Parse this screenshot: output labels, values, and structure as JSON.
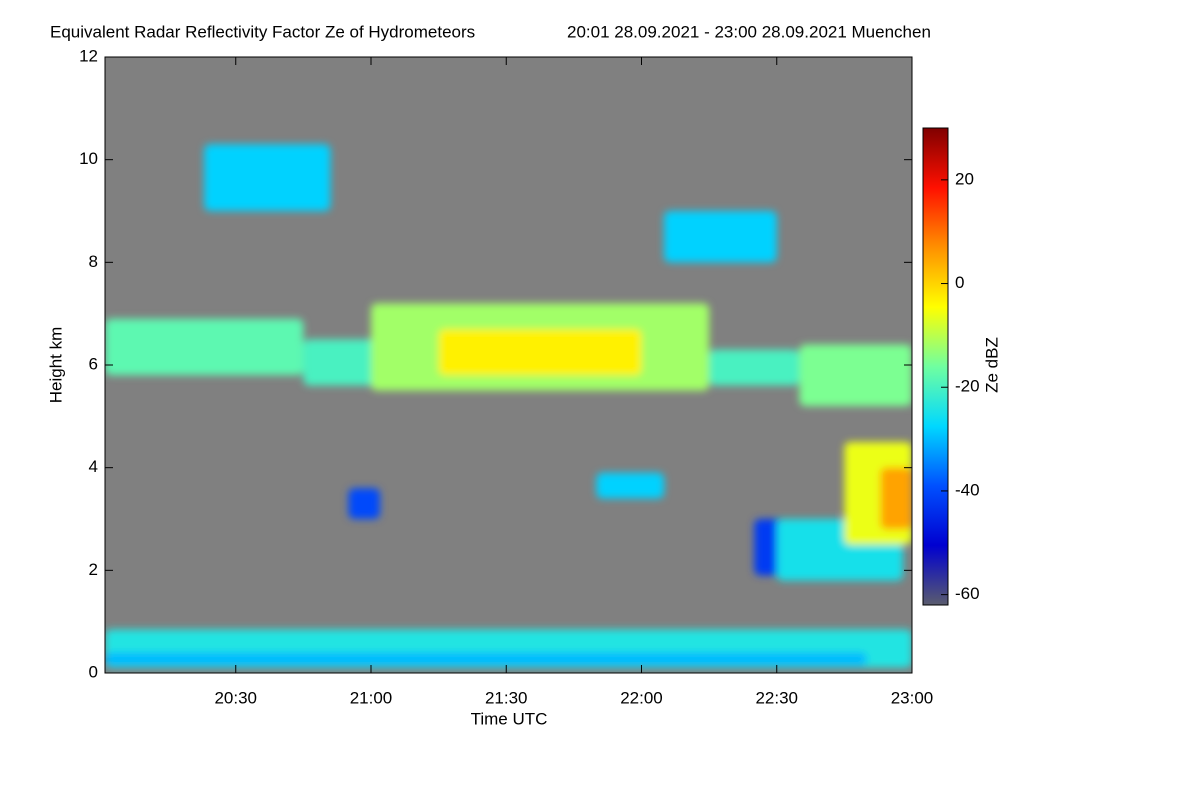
{
  "chart_data": {
    "type": "heatmap",
    "title": "Equivalent Radar Reflectivity Factor Ze of Hydrometeors",
    "subtitle": "20:01 28.09.2021 - 23:00 28.09.2021 Muenchen",
    "x_label": "Time UTC",
    "y_label": "Height km",
    "colorbar_label": "Ze dBZ",
    "xlim": [
      "20:01",
      "23:00"
    ],
    "xticks": [
      "20:30",
      "21:00",
      "21:30",
      "22:00",
      "22:30",
      "23:00"
    ],
    "ylim": [
      0,
      12
    ],
    "yticks": [
      0,
      2,
      4,
      6,
      8,
      10,
      12
    ],
    "clim": [
      -62,
      30
    ],
    "cticks": [
      -60,
      -40,
      -20,
      0,
      20
    ],
    "background": "#808080",
    "colormap": [
      "#5a5c6e",
      "#0000d0",
      "#0050ff",
      "#00d8ff",
      "#70ffa0",
      "#ffff00",
      "#ff9000",
      "#ff1000",
      "#800000"
    ],
    "cells": [
      {
        "start": "20:01",
        "end": "23:00",
        "bottom": 0.1,
        "top": 0.85,
        "ze": -24
      },
      {
        "start": "20:01",
        "end": "22:50",
        "bottom": 0.15,
        "top": 0.4,
        "ze": -30
      },
      {
        "start": "20:01",
        "end": "20:45",
        "bottom": 5.8,
        "top": 6.9,
        "ze": -18
      },
      {
        "start": "20:45",
        "end": "21:02",
        "bottom": 5.6,
        "top": 6.5,
        "ze": -20
      },
      {
        "start": "21:00",
        "end": "22:15",
        "bottom": 5.5,
        "top": 7.2,
        "ze": -12
      },
      {
        "start": "21:15",
        "end": "22:00",
        "bottom": 5.8,
        "top": 6.7,
        "ze": -3
      },
      {
        "start": "22:15",
        "end": "22:35",
        "bottom": 5.6,
        "top": 6.3,
        "ze": -20
      },
      {
        "start": "22:35",
        "end": "23:00",
        "bottom": 5.2,
        "top": 6.4,
        "ze": -15
      },
      {
        "start": "20:23",
        "end": "20:51",
        "bottom": 9.0,
        "top": 10.3,
        "ze": -28
      },
      {
        "start": "22:05",
        "end": "22:30",
        "bottom": 8.0,
        "top": 9.0,
        "ze": -28
      },
      {
        "start": "22:25",
        "end": "22:35",
        "bottom": 1.9,
        "top": 3.0,
        "ze": -42
      },
      {
        "start": "22:30",
        "end": "22:58",
        "bottom": 1.8,
        "top": 3.0,
        "ze": -25
      },
      {
        "start": "22:45",
        "end": "23:00",
        "bottom": 2.5,
        "top": 4.5,
        "ze": -6
      },
      {
        "start": "22:53",
        "end": "23:00",
        "bottom": 2.8,
        "top": 4.0,
        "ze": 5
      },
      {
        "start": "21:50",
        "end": "22:05",
        "bottom": 3.4,
        "top": 3.9,
        "ze": -28
      },
      {
        "start": "20:55",
        "end": "21:02",
        "bottom": 3.0,
        "top": 3.6,
        "ze": -40
      }
    ]
  }
}
